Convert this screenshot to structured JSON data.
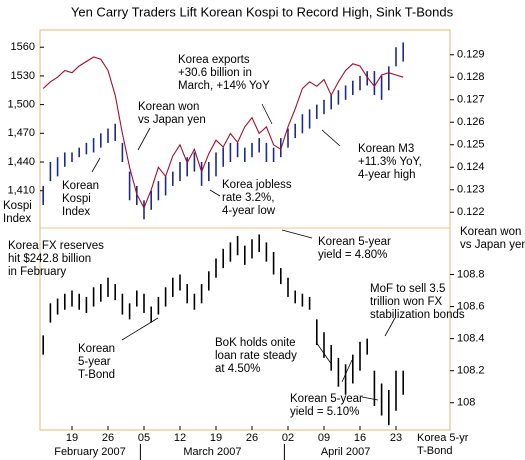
{
  "chart_data": [
    {
      "type": "range-bar",
      "title": "Yen Carry Traders Lift Korean Kospi to Record High, Sink T-Bonds",
      "categories": [
        null,
        null,
        null,
        null,
        "19",
        null,
        null,
        null,
        null,
        "26",
        null,
        null,
        null,
        null,
        "05",
        null,
        null,
        null,
        null,
        "12",
        null,
        null,
        null,
        null,
        "19",
        null,
        null,
        null,
        null,
        "26",
        null,
        null,
        null,
        null,
        "02",
        null,
        null,
        null,
        null,
        "09",
        null,
        null,
        null,
        null,
        "16",
        null,
        null,
        null,
        null,
        "23",
        null
      ],
      "months": [
        "February 2007",
        "March 2007",
        "April 2007"
      ],
      "xlabel": [
        "Korea 5-yr",
        "T-Bond"
      ],
      "ylabel": [
        "Kospi",
        "Index"
      ],
      "color": "#1c2a8c",
      "low": [
        1395,
        1420,
        1425,
        1435,
        1440,
        1445,
        1448,
        1450,
        1455,
        1460,
        1462,
        1440,
        1400,
        1395,
        1380,
        1390,
        1400,
        1405,
        1415,
        1420,
        1425,
        1430,
        1415,
        1420,
        1425,
        1435,
        1440,
        1445,
        1440,
        1445,
        1450,
        1440,
        1440,
        1445,
        1455,
        1465,
        1470,
        1475,
        1485,
        1490,
        1495,
        1500,
        1505,
        1510,
        1515,
        1520,
        1510,
        1505,
        1515,
        1540,
        1545
      ],
      "high": [
        1415,
        1440,
        1445,
        1450,
        1450,
        1455,
        1460,
        1465,
        1470,
        1475,
        1480,
        1460,
        1430,
        1415,
        1400,
        1410,
        1420,
        1425,
        1430,
        1440,
        1445,
        1450,
        1440,
        1440,
        1450,
        1455,
        1460,
        1460,
        1455,
        1460,
        1465,
        1460,
        1455,
        1465,
        1475,
        1480,
        1490,
        1495,
        1500,
        1505,
        1510,
        1515,
        1520,
        1525,
        1530,
        1535,
        1535,
        1530,
        1540,
        1560,
        1565
      ],
      "ylim": [
        1371,
        1578
      ],
      "yticks": [
        {
          "value": 1410,
          "label": "1,410"
        },
        {
          "value": 1440,
          "label": "1,440"
        },
        {
          "value": 1470,
          "label": "1,470"
        },
        {
          "value": 1500,
          "label": "1,500"
        },
        1530,
        1560
      ],
      "annotations": [
        {
          "lines": [
            "Korea exports",
            "+30.6 billion in",
            "March, +14% YoY"
          ],
          "color": "#000000"
        },
        {
          "lines": [
            "Korean won",
            "vs Japan yen"
          ],
          "color": "#a0102a"
        },
        {
          "lines": [
            "Korean M3",
            "+11.3% YoY,",
            "4-year high"
          ],
          "color": "#000000"
        },
        {
          "lines": [
            "Korea jobless",
            "rate 3.2%,",
            "4-year low"
          ],
          "color": "#000000"
        },
        {
          "lines": [
            "Korean",
            "Kospi",
            "Index"
          ],
          "color": "#1c2a8c"
        },
        {
          "lines": [
            "Korea FX reserves",
            "hit $242.8 billion",
            "in February"
          ],
          "color": "#000000"
        },
        {
          "lines": [
            "Korean 5-year",
            "yield = 4.80%"
          ],
          "color": "#000000"
        },
        {
          "lines": [
            "MoF to sell 3.5",
            "trillion won FX",
            "stabilization bonds"
          ],
          "color": "#000000"
        },
        {
          "lines": [
            "Korean",
            "5-year",
            "T-Bond"
          ],
          "color": "#000000"
        },
        {
          "lines": [
            "BoK holds onite",
            "loan rate steady",
            "at 4.50%"
          ],
          "color": "#000000"
        },
        {
          "lines": [
            "Korean 5-year",
            "yield = 5.10%"
          ],
          "color": "#000000"
        }
      ]
    },
    {
      "type": "line",
      "axis": "y2",
      "panel": 0,
      "label": [
        "Korean won",
        "vs Japan yen"
      ],
      "color": "#a0102a",
      "values": [
        0.1275,
        0.1278,
        0.128,
        0.1283,
        0.1282,
        0.1285,
        0.1287,
        0.1289,
        0.1288,
        0.1283,
        0.1272,
        0.1255,
        0.124,
        0.1228,
        0.1222,
        0.123,
        0.124,
        0.1236,
        0.1245,
        0.125,
        0.1242,
        0.1248,
        0.1238,
        0.1246,
        0.1252,
        0.1249,
        0.1255,
        0.1251,
        0.1258,
        0.1262,
        0.1255,
        0.1258,
        0.125,
        0.1248,
        0.1258,
        0.1266,
        0.1275,
        0.1278,
        0.1276,
        0.1279,
        0.1272,
        0.1278,
        0.1283,
        0.1286,
        0.1285,
        0.128,
        0.1276,
        0.1281,
        0.1282,
        0.1281,
        0.128
      ],
      "y2lim": [
        0.1213,
        0.1301
      ],
      "y2ticks": [
        0.122,
        0.123,
        0.124,
        0.125,
        0.126,
        0.127,
        0.128,
        0.129
      ]
    },
    {
      "type": "range-bar",
      "axis": "y2",
      "panel": 1,
      "color": "#000000",
      "low": [
        108.3,
        108.5,
        108.55,
        108.58,
        108.6,
        108.58,
        108.56,
        108.6,
        108.63,
        108.66,
        108.64,
        108.55,
        108.52,
        108.6,
        108.56,
        108.5,
        108.55,
        108.6,
        108.66,
        108.7,
        108.62,
        108.58,
        108.62,
        108.7,
        108.78,
        108.84,
        108.88,
        108.92,
        108.86,
        108.9,
        108.94,
        108.88,
        108.8,
        108.74,
        108.66,
        108.62,
        108.6,
        108.58,
        108.36,
        108.28,
        108.2,
        108.1,
        108.05,
        108.12,
        108.2,
        108.3,
        107.98,
        107.92,
        107.86,
        107.95,
        108.05
      ],
      "high": [
        108.42,
        108.62,
        108.65,
        108.68,
        108.7,
        108.68,
        108.66,
        108.72,
        108.74,
        108.78,
        108.74,
        108.68,
        108.62,
        108.7,
        108.68,
        108.6,
        108.66,
        108.72,
        108.78,
        108.8,
        108.74,
        108.68,
        108.74,
        108.82,
        108.9,
        108.96,
        109.0,
        109.04,
        108.98,
        109.02,
        109.05,
        109.0,
        108.94,
        108.84,
        108.78,
        108.7,
        108.68,
        108.66,
        108.52,
        108.44,
        108.36,
        108.28,
        108.24,
        108.3,
        108.38,
        108.4,
        108.2,
        108.12,
        108.08,
        108.2,
        108.2
      ],
      "y2lim": [
        107.83,
        109.09
      ],
      "y2ticks": [
        108,
        108.2,
        108.4,
        108.6,
        108.8
      ]
    }
  ]
}
